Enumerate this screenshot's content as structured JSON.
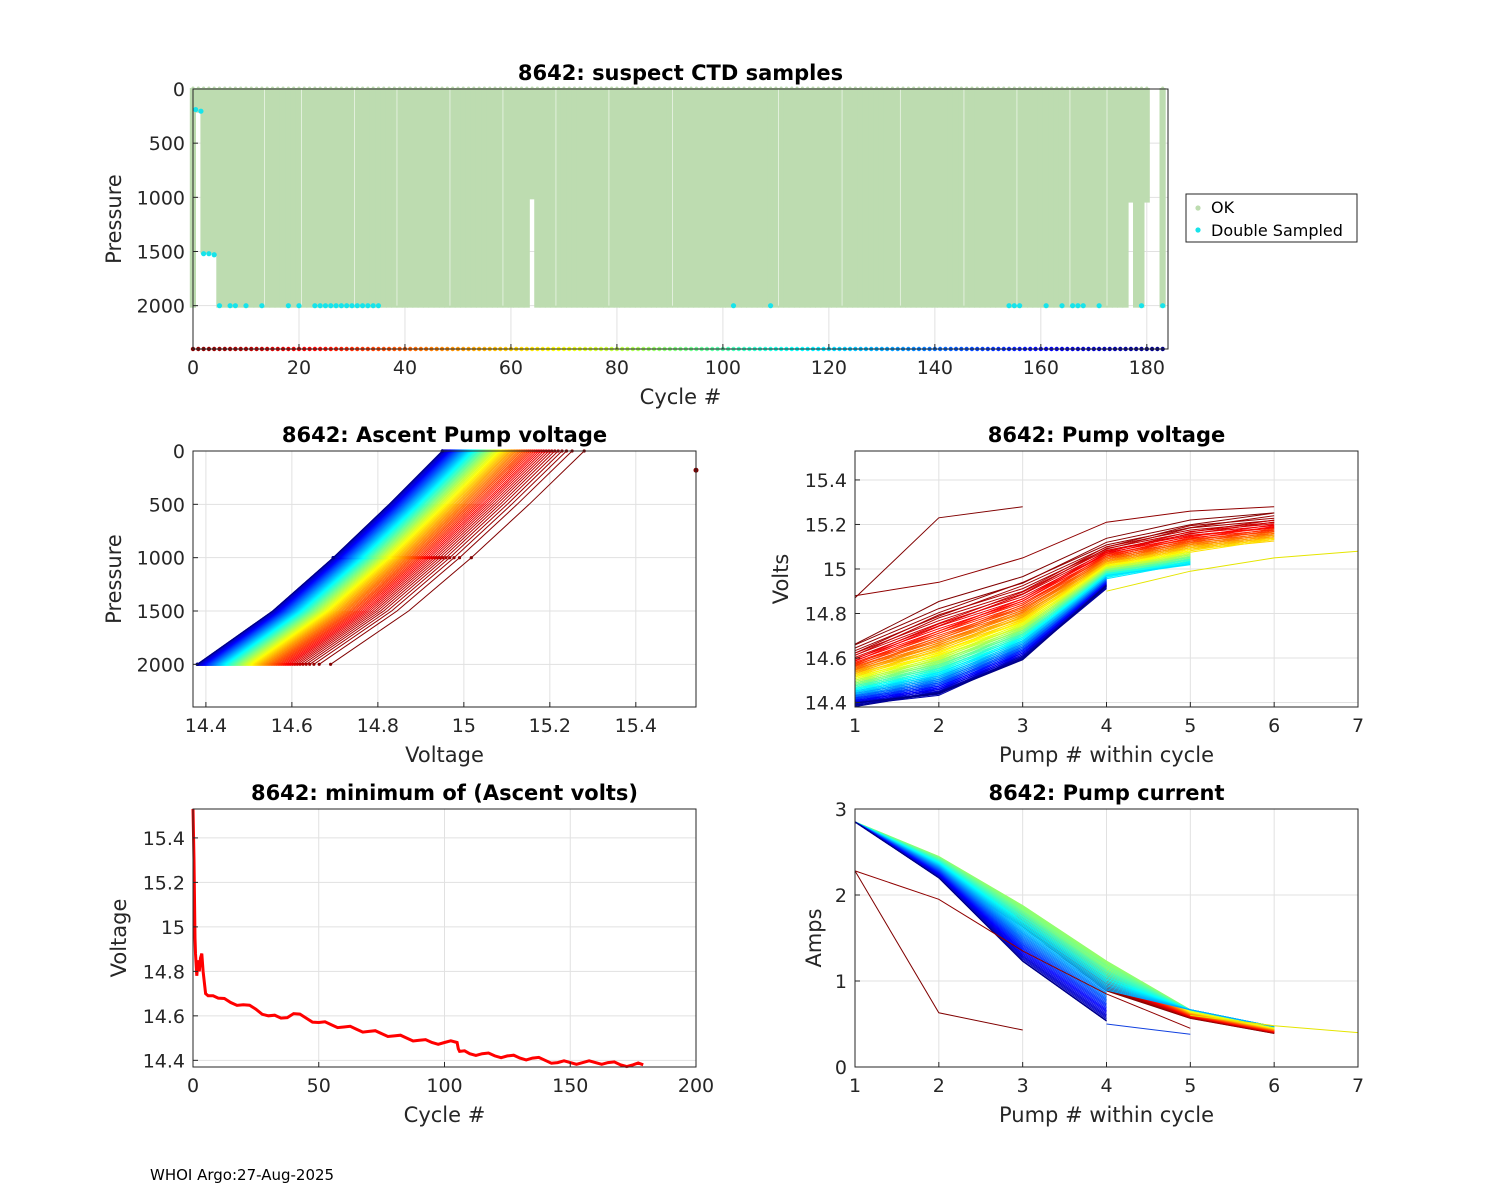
{
  "footer": "WHOI Argo:27-Aug-2025",
  "colors": {
    "ok": "#bddcb0",
    "double_sampled": "#17e3ea",
    "grid": "#e1e1e1",
    "axis": "#262626",
    "min_volts_line": "#ff0000"
  },
  "chart_data": [
    {
      "id": "suspect-ctd",
      "type": "scatter",
      "title": "8642: suspect CTD samples",
      "xlabel": "Cycle #",
      "ylabel": "Pressure",
      "xlim": [
        0,
        184
      ],
      "ylim": [
        0,
        2400
      ],
      "y_reversed": true,
      "xticks": [
        0,
        20,
        40,
        60,
        80,
        100,
        120,
        140,
        160,
        180
      ],
      "yticks": [
        0,
        500,
        1000,
        1500,
        2000
      ],
      "legend": [
        "OK",
        "Double Sampled"
      ],
      "legend_position": "outside-right",
      "cycle_marker_pressure": 2400,
      "ok_profiles": {
        "cycle_range": [
          0,
          183
        ],
        "max_pressure": 2000,
        "exceptions": [
          {
            "cycle": 1,
            "max_pressure": 200
          },
          {
            "cycle": 2,
            "max_pressure": 1500
          },
          {
            "cycle": 3,
            "max_pressure": 1500
          },
          {
            "cycle": 4,
            "max_pressure": 1500
          },
          {
            "cycle": 64,
            "max_pressure": 1000
          },
          {
            "cycle": 177,
            "max_pressure": 1030
          },
          {
            "cycle": 180,
            "max_pressure": 1030
          },
          {
            "cycle": 181,
            "missing": true
          },
          {
            "cycle": 182,
            "missing": true
          }
        ]
      },
      "double_sampled": [
        [
          0.5,
          190
        ],
        [
          1.5,
          205
        ],
        [
          2,
          1520
        ],
        [
          3,
          1520
        ],
        [
          4,
          1530
        ],
        [
          5,
          2000
        ],
        [
          7,
          2000
        ],
        [
          8,
          2000
        ],
        [
          10,
          2000
        ],
        [
          13,
          2000
        ],
        [
          18,
          2000
        ],
        [
          20,
          2000
        ],
        [
          23,
          2000
        ],
        [
          24,
          2000
        ],
        [
          25,
          2000
        ],
        [
          26,
          2000
        ],
        [
          27,
          2000
        ],
        [
          28,
          2000
        ],
        [
          29,
          2000
        ],
        [
          30,
          2000
        ],
        [
          31,
          2000
        ],
        [
          32,
          2000
        ],
        [
          33,
          2000
        ],
        [
          34,
          2000
        ],
        [
          35,
          2000
        ],
        [
          102,
          2000
        ],
        [
          109,
          2000
        ],
        [
          154,
          2000
        ],
        [
          155,
          2000
        ],
        [
          156,
          2000
        ],
        [
          161,
          2000
        ],
        [
          164,
          2000
        ],
        [
          166,
          2000
        ],
        [
          167,
          2000
        ],
        [
          168,
          2000
        ],
        [
          171,
          2000
        ],
        [
          179,
          2000
        ],
        [
          183,
          2000
        ]
      ]
    },
    {
      "id": "ascent-pump-voltage",
      "type": "line",
      "title": "8642: Ascent Pump voltage",
      "xlabel": "Voltage",
      "ylabel": "Pressure",
      "xlim": [
        14.37,
        15.54
      ],
      "ylim": [
        0,
        2400
      ],
      "y_reversed": true,
      "xticks": [
        14.4,
        14.6,
        14.8,
        15,
        15.2,
        15.4
      ],
      "xtick_labels": [
        "14.4",
        "14.6",
        "14.8",
        "15",
        "15.2",
        "15.4"
      ],
      "yticks": [
        0,
        500,
        1000,
        1500,
        2000
      ],
      "series_cycles": [
        0,
        183
      ],
      "color_by": "cycle (jet colormap)",
      "voltage_at_2000": {
        "start": 14.69,
        "min": 14.38
      },
      "voltage_at_surface": {
        "start": 15.28,
        "min": 14.95
      },
      "outlier_point": [
        15.54,
        180
      ]
    },
    {
      "id": "pump-voltage",
      "type": "line",
      "title": "8642: Pump voltage",
      "xlabel": "Pump # within cycle",
      "ylabel": "Volts",
      "xlim": [
        1,
        7
      ],
      "ylim": [
        14.38,
        15.53
      ],
      "xticks": [
        1,
        2,
        3,
        4,
        5,
        6,
        7
      ],
      "yticks": [
        14.4,
        14.6,
        14.8,
        15,
        15.2,
        15.4
      ],
      "ytick_labels": [
        "14.4",
        "14.6",
        "14.8",
        "15",
        "15.2",
        "15.4"
      ],
      "color_by": "cycle (jet colormap)",
      "early_cycle_curve": [
        14.67,
        14.85,
        14.97,
        15.13,
        15.22,
        15.26
      ],
      "min_cycle_curve": [
        14.39,
        14.44,
        14.6,
        14.92,
        14.97
      ],
      "special_series": [
        {
          "x": [
            1,
            2,
            3
          ],
          "y": [
            14.87,
            15.23,
            15.28
          ]
        },
        {
          "x": [
            1,
            2,
            3,
            4,
            5,
            6
          ],
          "y": [
            14.88,
            14.94,
            15.05,
            15.21,
            15.26,
            15.28
          ]
        },
        {
          "x": [
            4,
            5,
            6,
            7
          ],
          "y": [
            14.9,
            14.99,
            15.05,
            15.08
          ]
        }
      ]
    },
    {
      "id": "min-ascent-volts",
      "type": "line",
      "title": "8642: minimum of (Ascent volts)",
      "xlabel": "Cycle #",
      "ylabel": "Voltage",
      "xlim": [
        0,
        200
      ],
      "ylim": [
        14.37,
        15.53
      ],
      "xticks": [
        0,
        50,
        100,
        150,
        200
      ],
      "yticks": [
        14.4,
        14.6,
        14.8,
        15,
        15.2,
        15.4
      ],
      "ytick_labels": [
        "14.4",
        "14.6",
        "14.8",
        "15",
        "15.2",
        "15.4"
      ],
      "x": [
        0,
        0.4,
        0.8,
        1,
        1.5,
        2,
        2.5,
        3,
        3.5,
        4,
        5,
        6,
        8,
        10,
        15,
        20,
        25,
        30,
        35,
        40,
        45,
        50,
        55,
        60,
        65,
        70,
        75,
        80,
        85,
        90,
        95,
        100,
        105,
        106,
        110,
        115,
        120,
        125,
        130,
        135,
        140,
        145,
        150,
        155,
        160,
        165,
        170,
        175,
        179
      ],
      "y": [
        15.53,
        15.3,
        14.95,
        14.88,
        14.78,
        14.85,
        14.8,
        14.86,
        14.88,
        14.8,
        14.7,
        14.69,
        14.69,
        14.68,
        14.66,
        14.65,
        14.63,
        14.6,
        14.59,
        14.61,
        14.59,
        14.57,
        14.56,
        14.55,
        14.54,
        14.53,
        14.52,
        14.51,
        14.5,
        14.49,
        14.48,
        14.48,
        14.48,
        14.44,
        14.43,
        14.43,
        14.42,
        14.42,
        14.41,
        14.41,
        14.4,
        14.39,
        14.39,
        14.39,
        14.39,
        14.39,
        14.38,
        14.38,
        14.38
      ]
    },
    {
      "id": "pump-current",
      "type": "line",
      "title": "8642: Pump current",
      "xlabel": "Pump # within cycle",
      "ylabel": "Amps",
      "xlim": [
        1,
        7
      ],
      "ylim": [
        0,
        3
      ],
      "xticks": [
        1,
        2,
        3,
        4,
        5,
        6,
        7
      ],
      "yticks": [
        0,
        1,
        2,
        3
      ],
      "color_by": "cycle (jet colormap)",
      "early_cycle_curve": [
        2.88,
        2.25,
        1.6,
        0.9,
        0.55,
        0.42
      ],
      "mid_cycle_curve": [
        2.88,
        2.45,
        1.85,
        1.25,
        0.65,
        0.5
      ],
      "late_cycle_curve": [
        2.88,
        2.2,
        1.2,
        0.55
      ],
      "special_series": [
        {
          "x": [
            1,
            2,
            3
          ],
          "y": [
            2.28,
            0.63,
            0.43
          ]
        },
        {
          "x": [
            1,
            2,
            3,
            4,
            5
          ],
          "y": [
            2.28,
            1.95,
            1.35,
            0.85,
            0.45
          ]
        },
        {
          "x": [
            4,
            5
          ],
          "y": [
            0.5,
            0.38
          ]
        },
        {
          "x": [
            5,
            6,
            7
          ],
          "y": [
            0.6,
            0.48,
            0.4
          ]
        }
      ]
    }
  ]
}
